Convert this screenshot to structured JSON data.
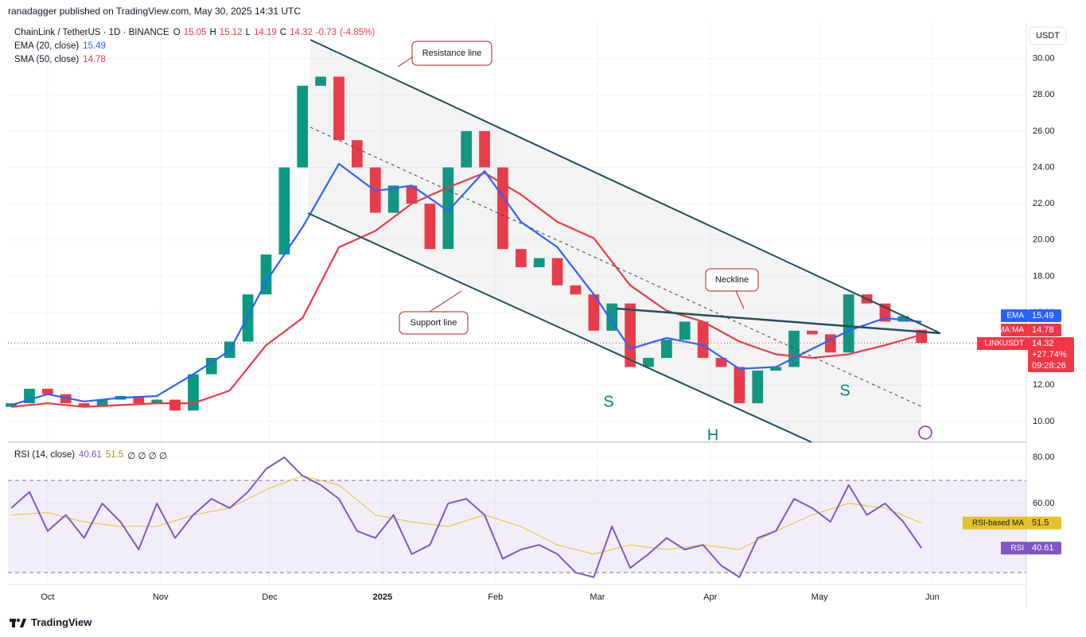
{
  "header": {
    "publisher": "ranadagger published on TradingView.com, May 30, 2025 14:31 UTC",
    "brand": "TradingView"
  },
  "chart_data": [
    {
      "type": "candlestick",
      "title": "ChainLink / TetherUS · 1D · BINANCE",
      "quote": [
        {
          "label": "O",
          "value": 15.05
        },
        {
          "label": "H",
          "value": 15.12
        },
        {
          "label": "L",
          "value": 14.19
        },
        {
          "label": "C",
          "value": 14.32
        }
      ],
      "change": -0.73,
      "change_pct": {
        "value": -4.85,
        "label": "(-4.85%)"
      },
      "axis_unit": "USDT",
      "colors": {
        "up": "#089981",
        "down": "#f23645"
      },
      "x": [
        -10,
        -5,
        0,
        5,
        10,
        15,
        20,
        25,
        30,
        35,
        40,
        45,
        50,
        55,
        60,
        65,
        70,
        75,
        80,
        85,
        90,
        95,
        100,
        105,
        110,
        115,
        120,
        125,
        130,
        135,
        140,
        145,
        150,
        155,
        160,
        165,
        170,
        175,
        180,
        185,
        190,
        195,
        200,
        205,
        210,
        215,
        220,
        225,
        230,
        235,
        240
      ],
      "open": [
        10.8,
        11.0,
        11.8,
        11.5,
        11.0,
        10.8,
        11.2,
        11.4,
        11.0,
        11.2,
        10.6,
        12.6,
        13.5,
        14.4,
        17.0,
        19.2,
        24.0,
        28.5,
        29.0,
        25.5,
        24.0,
        21.5,
        23.0,
        22.0,
        19.5,
        24.0,
        26.0,
        24.0,
        19.5,
        18.5,
        19.0,
        17.5,
        17.0,
        15.0,
        16.5,
        13.0,
        13.5,
        14.5,
        15.5,
        13.5,
        13.0,
        11.0,
        12.8,
        13.0,
        15.0,
        14.8,
        13.8,
        17.0,
        16.5,
        15.5,
        15.05
      ],
      "close": [
        11.0,
        11.8,
        11.5,
        11.0,
        10.8,
        11.2,
        11.4,
        11.0,
        11.2,
        10.6,
        12.6,
        13.5,
        14.4,
        17.0,
        19.2,
        24.0,
        28.5,
        29.0,
        25.5,
        24.0,
        21.5,
        23.0,
        22.0,
        19.5,
        24.0,
        26.0,
        24.0,
        19.5,
        18.5,
        19.0,
        17.5,
        17.0,
        15.0,
        16.5,
        13.0,
        13.5,
        14.5,
        15.5,
        13.5,
        13.0,
        11.0,
        12.8,
        13.0,
        15.0,
        14.8,
        13.8,
        17.0,
        16.5,
        15.5,
        15.8,
        14.32
      ],
      "series": [
        {
          "name": "EMA (20, close)",
          "tag": "EMA",
          "color": "#2962ff",
          "x": [
            -10,
            0,
            10,
            20,
            30,
            40,
            50,
            60,
            70,
            80,
            90,
            100,
            110,
            120,
            130,
            140,
            150,
            160,
            170,
            180,
            190,
            200,
            210,
            220,
            230,
            240
          ],
          "values": [
            10.9,
            11.5,
            11.1,
            11.3,
            11.4,
            12.6,
            13.9,
            17.7,
            20.7,
            24.2,
            22.7,
            23.0,
            21.6,
            23.8,
            21.0,
            19.6,
            17.0,
            14.0,
            14.6,
            14.2,
            12.9,
            13.0,
            14.0,
            15.0,
            15.7,
            15.49
          ]
        },
        {
          "name": "SMA (50, close)",
          "tag": "SMA:MA",
          "color": "#f23645",
          "x": [
            -10,
            0,
            10,
            20,
            30,
            40,
            50,
            60,
            70,
            80,
            90,
            100,
            110,
            120,
            130,
            140,
            150,
            160,
            170,
            180,
            190,
            200,
            210,
            220,
            230,
            240
          ],
          "values": [
            10.8,
            11.0,
            10.8,
            10.9,
            11.0,
            11.0,
            11.7,
            14.2,
            15.7,
            19.6,
            20.5,
            22.0,
            22.9,
            23.7,
            22.5,
            21.0,
            20.1,
            17.5,
            16.1,
            15.5,
            14.4,
            13.7,
            13.5,
            13.7,
            14.2,
            14.78
          ]
        }
      ],
      "price_tag": {
        "label": "LINKUSDT",
        "change": "+27.74%",
        "countdown": "09:28:26"
      },
      "annotations": [
        "Resistance line",
        "Support line",
        "Neckline",
        "S",
        "H",
        "S"
      ],
      "xlim": [
        -10.9,
        268.8
      ],
      "xticks": [
        {
          "value": 0,
          "label": "Oct"
        },
        {
          "value": 31,
          "label": "Nov"
        },
        {
          "value": 61,
          "label": "Dec"
        },
        {
          "value": 92,
          "label": "2025"
        },
        {
          "value": 123,
          "label": "Feb"
        },
        {
          "value": 151,
          "label": "Mar"
        },
        {
          "value": 182,
          "label": "Apr"
        },
        {
          "value": 212,
          "label": "May"
        },
        {
          "value": 243,
          "label": "Jun"
        }
      ],
      "ylim": [
        8.9,
        32.0
      ],
      "yticks": [
        {
          "value": 10,
          "label": "10.00"
        },
        {
          "value": 12,
          "label": "12.00"
        },
        {
          "value": 14,
          "label": "14.00"
        },
        {
          "value": 16,
          "label": "16.00"
        },
        {
          "value": 18,
          "label": "18.00"
        },
        {
          "value": 20,
          "label": "20.00"
        },
        {
          "value": 22,
          "label": "22.00"
        },
        {
          "value": 24,
          "label": "24.00"
        },
        {
          "value": 26,
          "label": "26.00"
        },
        {
          "value": 28,
          "label": "28.00"
        },
        {
          "value": 30,
          "label": "30.00"
        }
      ],
      "grid": true
    },
    {
      "type": "line",
      "title": "RSI (14, close)",
      "na": "∅ ∅ ∅ ∅",
      "series": [
        {
          "name": "RSI",
          "color": "#7e57c2",
          "x": [
            -10,
            -5,
            0,
            5,
            10,
            15,
            20,
            25,
            30,
            35,
            40,
            45,
            50,
            55,
            60,
            65,
            70,
            75,
            80,
            85,
            90,
            95,
            100,
            105,
            110,
            115,
            120,
            125,
            130,
            135,
            140,
            145,
            150,
            155,
            160,
            165,
            170,
            175,
            180,
            185,
            190,
            195,
            200,
            205,
            210,
            215,
            220,
            225,
            230,
            235,
            240
          ],
          "values": [
            58,
            65,
            48,
            55,
            45,
            60,
            52,
            40,
            60,
            45,
            55,
            62,
            58,
            65,
            75,
            80,
            72,
            68,
            62,
            48,
            45,
            55,
            38,
            42,
            60,
            62,
            55,
            36,
            40,
            42,
            38,
            30,
            28,
            50,
            32,
            38,
            45,
            40,
            42,
            33,
            28,
            45,
            48,
            62,
            58,
            52,
            68,
            55,
            60,
            52,
            40.61
          ]
        },
        {
          "name": "RSI-based MA",
          "color": "#e6c229",
          "x": [
            -10,
            0,
            10,
            20,
            30,
            40,
            50,
            60,
            70,
            80,
            90,
            100,
            110,
            120,
            130,
            140,
            150,
            160,
            170,
            180,
            190,
            200,
            210,
            220,
            230,
            240
          ],
          "values": [
            55,
            56,
            52,
            50,
            50,
            55,
            58,
            66,
            72,
            68,
            55,
            52,
            50,
            55,
            50,
            42,
            38,
            42,
            40,
            42,
            40,
            48,
            55,
            60,
            58,
            51.5
          ]
        }
      ],
      "bands": [
        30,
        70
      ],
      "xlim": [
        -10.9,
        268.8
      ],
      "ylim": [
        24.8,
        86.6
      ],
      "yticks": [
        {
          "value": 80,
          "label": "80.00"
        },
        {
          "value": 60,
          "label": "60.00"
        }
      ],
      "grid": true
    }
  ]
}
